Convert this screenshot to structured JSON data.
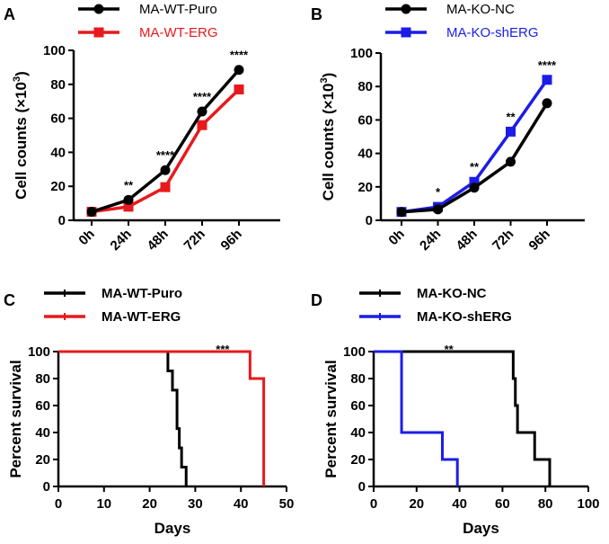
{
  "chart_data": [
    {
      "panel": "A",
      "type": "line",
      "categories": [
        "0h",
        "24h",
        "48h",
        "72h",
        "96h"
      ],
      "ylabel": "Cell counts (×10³)",
      "ylabel_main": "Cell counts (×10",
      "ylabel_sup": "3",
      "ylabel_tail": ")",
      "ylim": [
        0,
        100
      ],
      "yticks": [
        0,
        20,
        40,
        60,
        80,
        100
      ],
      "series": [
        {
          "name": "MA-WT-Puro",
          "color": "#000000",
          "marker": "circle",
          "values": [
            5,
            12,
            29.5,
            64,
            88.5
          ]
        },
        {
          "name": "MA-WT-ERG",
          "color": "#e8191c",
          "marker": "square",
          "values": [
            5,
            8,
            19.5,
            56,
            77
          ]
        }
      ],
      "significance": [
        "",
        "**",
        "****",
        "****",
        "****"
      ]
    },
    {
      "panel": "B",
      "type": "line",
      "categories": [
        "0h",
        "24h",
        "48h",
        "72h",
        "96h"
      ],
      "ylabel": "Cell counts (×10³)",
      "ylabel_main": "Cell counts (×10",
      "ylabel_sup": "3",
      "ylabel_tail": ")",
      "ylim": [
        0,
        100
      ],
      "yticks": [
        0,
        20,
        40,
        60,
        80,
        100
      ],
      "series": [
        {
          "name": "MA-KO-NC",
          "color": "#000000",
          "marker": "circle",
          "values": [
            5,
            6.5,
            19.5,
            35,
            70
          ]
        },
        {
          "name": "MA-KO-shERG",
          "color": "#1c1ce8",
          "marker": "square",
          "values": [
            5,
            8,
            23,
            53,
            84
          ]
        }
      ],
      "significance": [
        "",
        "*",
        "**",
        "**",
        "****"
      ]
    },
    {
      "panel": "C",
      "type": "line",
      "subtype": "kaplan-meier",
      "xlabel": "Days",
      "ylabel": "Percent survival",
      "xlim": [
        0,
        50
      ],
      "ylim": [
        0,
        100
      ],
      "xticks": [
        0,
        10,
        20,
        30,
        40,
        50
      ],
      "yticks": [
        0,
        20,
        40,
        60,
        80,
        100
      ],
      "series": [
        {
          "name": "MA-WT-Puro",
          "color": "#000000",
          "steps": [
            [
              0,
              100
            ],
            [
              24,
              100
            ],
            [
              24,
              85.7
            ],
            [
              25,
              85.7
            ],
            [
              25,
              71.4
            ],
            [
              26,
              71.4
            ],
            [
              26,
              42.9
            ],
            [
              26.5,
              42.9
            ],
            [
              26.5,
              28.6
            ],
            [
              27,
              28.6
            ],
            [
              27,
              14.3
            ],
            [
              28,
              14.3
            ],
            [
              28,
              0
            ]
          ]
        },
        {
          "name": "MA-WT-ERG",
          "color": "#e8191c",
          "steps": [
            [
              0,
              100
            ],
            [
              42,
              100
            ],
            [
              42,
              80
            ],
            [
              45,
              80
            ],
            [
              45,
              0
            ]
          ]
        }
      ],
      "significance": "***",
      "significance_x": 36
    },
    {
      "panel": "D",
      "type": "line",
      "subtype": "kaplan-meier",
      "xlabel": "Days",
      "ylabel": "Percent survival",
      "xlim": [
        0,
        100
      ],
      "ylim": [
        0,
        100
      ],
      "xticks": [
        0,
        20,
        40,
        60,
        80,
        100
      ],
      "yticks": [
        0,
        20,
        40,
        60,
        80,
        100
      ],
      "series": [
        {
          "name": "MA-KO-NC",
          "color": "#000000",
          "steps": [
            [
              0,
              100
            ],
            [
              65,
              100
            ],
            [
              65,
              80
            ],
            [
              66,
              80
            ],
            [
              66,
              60
            ],
            [
              67,
              60
            ],
            [
              67,
              40
            ],
            [
              75,
              40
            ],
            [
              75,
              20
            ],
            [
              82,
              20
            ],
            [
              82,
              0
            ]
          ]
        },
        {
          "name": "MA-KO-shERG",
          "color": "#1c1ce8",
          "steps": [
            [
              0,
              100
            ],
            [
              13,
              100
            ],
            [
              13,
              40
            ],
            [
              32,
              40
            ],
            [
              32,
              20
            ],
            [
              39,
              20
            ],
            [
              39,
              0
            ]
          ]
        }
      ],
      "significance": "**",
      "significance_x": 35
    }
  ]
}
